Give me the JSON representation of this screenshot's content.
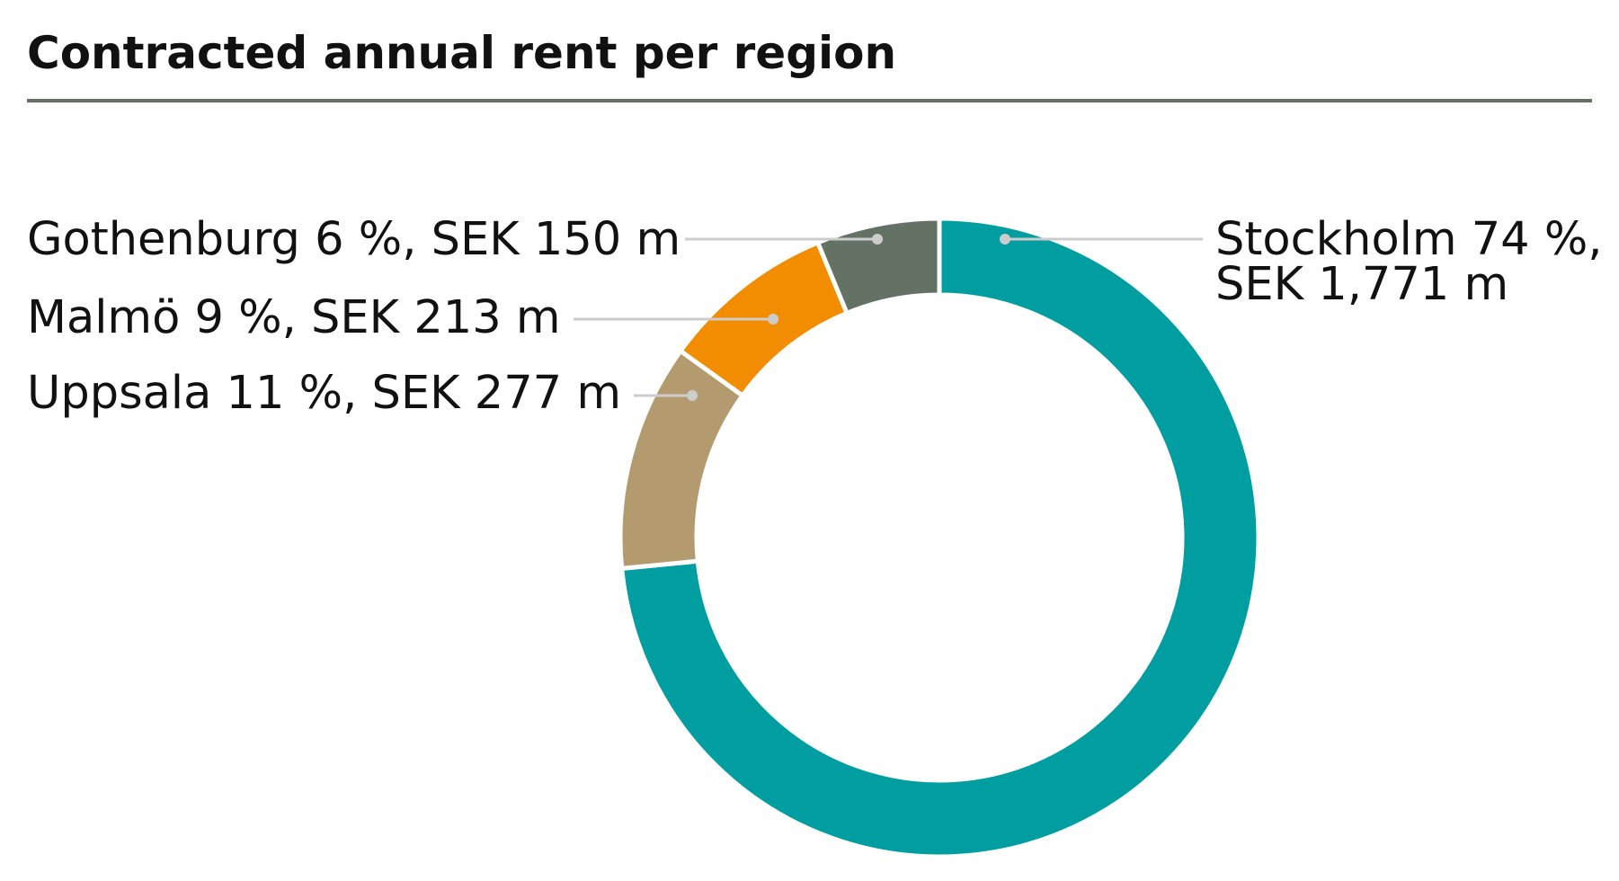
{
  "chart_data": {
    "type": "pie",
    "style": "donut",
    "title": "Contracted annual rent per region",
    "slices": [
      {
        "name": "Stockholm",
        "share": 74,
        "value": 1771,
        "color": "#009ea1",
        "label_lines": [
          "Stockholm 74 %,",
          "SEK 1,771 m"
        ]
      },
      {
        "name": "Uppsala",
        "share": 11,
        "value": 277,
        "color": "#b39b6f",
        "label_lines": [
          "Uppsala 11 %, SEK 277 m"
        ]
      },
      {
        "name": "Malmö",
        "share": 9,
        "value": 213,
        "color": "#f28c00",
        "label_lines": [
          "Malmö 9 %, SEK 213 m"
        ]
      },
      {
        "name": "Gothenburg",
        "share": 6,
        "value": 150,
        "color": "#637264",
        "label_lines": [
          "Gothenburg 6 %, SEK 150 m"
        ]
      }
    ],
    "rule_color": "#637264",
    "leader_color": "#cccccc"
  }
}
